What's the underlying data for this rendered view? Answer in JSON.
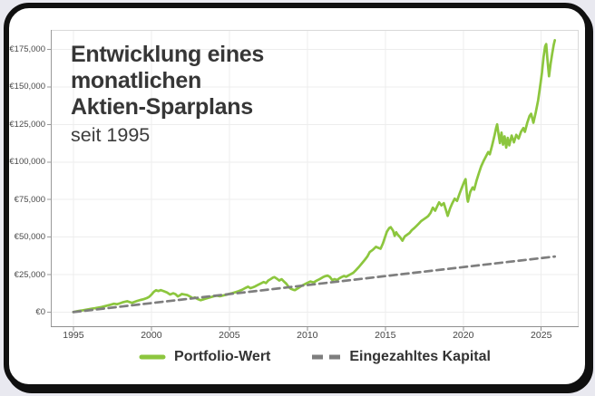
{
  "page": {
    "background": "#e9e9f0",
    "card_background": "#ffffff",
    "card_border_color": "#101010"
  },
  "chart": {
    "title": "Entwicklung eines\nmonatlichen\nAktien-Sparplans",
    "subtitle": "seit 1995"
  },
  "chart_data": {
    "type": "line",
    "title": "Entwicklung eines monatlichen Aktien-Sparplans",
    "subtitle": "seit 1995",
    "xlabel": "",
    "ylabel": "",
    "legend_position": "bottom",
    "grid": true,
    "x_axis": {
      "ticks": [
        1995,
        2000,
        2005,
        2010,
        2015,
        2020,
        2025
      ],
      "range": [
        1993.55,
        2027.4
      ]
    },
    "y_axis": {
      "ticks": [
        0,
        25000,
        50000,
        75000,
        100000,
        125000,
        150000,
        175000
      ],
      "range": [
        -10000,
        188000
      ],
      "tick_prefix": "€"
    },
    "series": [
      {
        "name": "Portfolio-Wert",
        "color": "#8cc63e",
        "line_style": "solid",
        "points": [
          [
            1995.0,
            100
          ],
          [
            1995.2,
            500
          ],
          [
            1995.4,
            900
          ],
          [
            1995.6,
            1200
          ],
          [
            1995.8,
            1600
          ],
          [
            1996.0,
            1950
          ],
          [
            1996.2,
            2300
          ],
          [
            1996.4,
            2600
          ],
          [
            1996.6,
            3050
          ],
          [
            1996.8,
            3400
          ],
          [
            1997.0,
            3900
          ],
          [
            1997.2,
            4450
          ],
          [
            1997.4,
            4950
          ],
          [
            1997.6,
            5600
          ],
          [
            1997.8,
            5250
          ],
          [
            1998.0,
            5950
          ],
          [
            1998.2,
            6650
          ],
          [
            1998.45,
            7250
          ],
          [
            1998.6,
            6700
          ],
          [
            1998.75,
            6100
          ],
          [
            1998.9,
            6750
          ],
          [
            1999.1,
            7500
          ],
          [
            1999.3,
            8100
          ],
          [
            1999.5,
            8600
          ],
          [
            1999.7,
            9300
          ],
          [
            1999.85,
            10100
          ],
          [
            2000.0,
            11600
          ],
          [
            2000.15,
            13500
          ],
          [
            2000.3,
            14650
          ],
          [
            2000.45,
            14050
          ],
          [
            2000.6,
            14700
          ],
          [
            2000.8,
            13900
          ],
          [
            2001.0,
            13050
          ],
          [
            2001.2,
            11750
          ],
          [
            2001.4,
            12600
          ],
          [
            2001.55,
            11950
          ],
          [
            2001.7,
            10450
          ],
          [
            2001.85,
            11300
          ],
          [
            2001.95,
            12100
          ],
          [
            2002.1,
            11800
          ],
          [
            2002.3,
            11350
          ],
          [
            2002.5,
            10300
          ],
          [
            2002.65,
            9250
          ],
          [
            2002.8,
            9800
          ],
          [
            2002.95,
            8750
          ],
          [
            2003.15,
            7950
          ],
          [
            2003.3,
            8350
          ],
          [
            2003.45,
            8900
          ],
          [
            2003.6,
            9400
          ],
          [
            2003.8,
            9950
          ],
          [
            2004.0,
            10600
          ],
          [
            2004.2,
            10950
          ],
          [
            2004.4,
            10600
          ],
          [
            2004.6,
            11050
          ],
          [
            2004.8,
            11550
          ],
          [
            2005.0,
            12150
          ],
          [
            2005.2,
            12700
          ],
          [
            2005.4,
            13300
          ],
          [
            2005.6,
            13950
          ],
          [
            2005.8,
            14800
          ],
          [
            2006.0,
            15950
          ],
          [
            2006.2,
            16950
          ],
          [
            2006.35,
            15950
          ],
          [
            2006.5,
            16500
          ],
          [
            2006.65,
            17100
          ],
          [
            2006.8,
            17950
          ],
          [
            2007.0,
            19050
          ],
          [
            2007.2,
            20050
          ],
          [
            2007.35,
            19350
          ],
          [
            2007.5,
            21100
          ],
          [
            2007.65,
            22000
          ],
          [
            2007.8,
            23000
          ],
          [
            2007.9,
            23350
          ],
          [
            2008.05,
            22250
          ],
          [
            2008.2,
            21050
          ],
          [
            2008.35,
            21950
          ],
          [
            2008.5,
            20450
          ],
          [
            2008.65,
            19000
          ],
          [
            2008.8,
            16800
          ],
          [
            2008.95,
            15500
          ],
          [
            2009.1,
            14900
          ],
          [
            2009.2,
            14650
          ],
          [
            2009.4,
            15900
          ],
          [
            2009.6,
            17350
          ],
          [
            2009.8,
            18450
          ],
          [
            2010.0,
            19450
          ],
          [
            2010.2,
            20450
          ],
          [
            2010.4,
            19750
          ],
          [
            2010.6,
            20950
          ],
          [
            2010.8,
            22050
          ],
          [
            2011.0,
            23250
          ],
          [
            2011.15,
            23900
          ],
          [
            2011.3,
            24350
          ],
          [
            2011.45,
            23400
          ],
          [
            2011.6,
            21350
          ],
          [
            2011.75,
            22000
          ],
          [
            2011.9,
            21400
          ],
          [
            2012.05,
            22500
          ],
          [
            2012.2,
            23400
          ],
          [
            2012.35,
            24050
          ],
          [
            2012.5,
            23550
          ],
          [
            2012.65,
            24550
          ],
          [
            2012.8,
            25350
          ],
          [
            2012.95,
            26300
          ],
          [
            2013.1,
            27800
          ],
          [
            2013.3,
            30000
          ],
          [
            2013.5,
            32500
          ],
          [
            2013.7,
            35000
          ],
          [
            2013.85,
            37000
          ],
          [
            2014.0,
            40000
          ],
          [
            2014.2,
            41500
          ],
          [
            2014.4,
            43500
          ],
          [
            2014.55,
            42800
          ],
          [
            2014.7,
            42200
          ],
          [
            2014.85,
            45800
          ],
          [
            2015.0,
            50500
          ],
          [
            2015.1,
            53500
          ],
          [
            2015.25,
            56000
          ],
          [
            2015.35,
            56600
          ],
          [
            2015.5,
            54200
          ],
          [
            2015.6,
            50800
          ],
          [
            2015.7,
            53200
          ],
          [
            2015.8,
            51500
          ],
          [
            2015.95,
            49900
          ],
          [
            2016.1,
            47600
          ],
          [
            2016.25,
            50400
          ],
          [
            2016.4,
            51600
          ],
          [
            2016.55,
            52700
          ],
          [
            2016.7,
            54600
          ],
          [
            2016.85,
            55900
          ],
          [
            2017.0,
            57400
          ],
          [
            2017.15,
            59000
          ],
          [
            2017.3,
            60600
          ],
          [
            2017.45,
            61700
          ],
          [
            2017.6,
            62800
          ],
          [
            2017.75,
            64000
          ],
          [
            2017.9,
            66100
          ],
          [
            2018.05,
            69600
          ],
          [
            2018.2,
            67600
          ],
          [
            2018.35,
            71000
          ],
          [
            2018.45,
            73100
          ],
          [
            2018.6,
            71100
          ],
          [
            2018.75,
            72600
          ],
          [
            2018.9,
            67600
          ],
          [
            2019.0,
            64100
          ],
          [
            2019.15,
            69100
          ],
          [
            2019.3,
            72600
          ],
          [
            2019.45,
            75600
          ],
          [
            2019.6,
            74100
          ],
          [
            2019.75,
            78600
          ],
          [
            2019.9,
            82600
          ],
          [
            2020.05,
            86600
          ],
          [
            2020.15,
            88600
          ],
          [
            2020.25,
            76000
          ],
          [
            2020.3,
            73600
          ],
          [
            2020.45,
            80100
          ],
          [
            2020.6,
            83100
          ],
          [
            2020.7,
            81600
          ],
          [
            2020.85,
            87600
          ],
          [
            2021.0,
            92600
          ],
          [
            2021.15,
            97100
          ],
          [
            2021.3,
            100600
          ],
          [
            2021.45,
            103600
          ],
          [
            2021.6,
            106600
          ],
          [
            2021.7,
            105100
          ],
          [
            2021.85,
            111100
          ],
          [
            2022.0,
            117600
          ],
          [
            2022.1,
            122500
          ],
          [
            2022.17,
            125100
          ],
          [
            2022.25,
            119100
          ],
          [
            2022.35,
            112600
          ],
          [
            2022.45,
            119600
          ],
          [
            2022.55,
            111600
          ],
          [
            2022.65,
            117100
          ],
          [
            2022.75,
            109600
          ],
          [
            2022.85,
            116100
          ],
          [
            2022.95,
            111100
          ],
          [
            2023.1,
            117600
          ],
          [
            2023.25,
            113100
          ],
          [
            2023.4,
            118100
          ],
          [
            2023.55,
            115600
          ],
          [
            2023.7,
            120100
          ],
          [
            2023.85,
            122600
          ],
          [
            2023.95,
            120100
          ],
          [
            2024.1,
            126100
          ],
          [
            2024.25,
            130600
          ],
          [
            2024.35,
            132100
          ],
          [
            2024.5,
            126100
          ],
          [
            2024.65,
            133100
          ],
          [
            2024.8,
            141100
          ],
          [
            2024.95,
            152100
          ],
          [
            2025.05,
            160000
          ],
          [
            2025.15,
            170000
          ],
          [
            2025.25,
            177000
          ],
          [
            2025.32,
            178600
          ],
          [
            2025.4,
            168100
          ],
          [
            2025.5,
            157100
          ],
          [
            2025.6,
            165600
          ],
          [
            2025.7,
            172100
          ],
          [
            2025.8,
            178100
          ],
          [
            2025.87,
            181100
          ]
        ]
      },
      {
        "name": "Eingezahltes Kapital",
        "color": "#7e7e7e",
        "line_style": "dashed",
        "points": [
          [
            1995.0,
            0
          ],
          [
            2025.87,
            37000
          ]
        ]
      }
    ]
  }
}
